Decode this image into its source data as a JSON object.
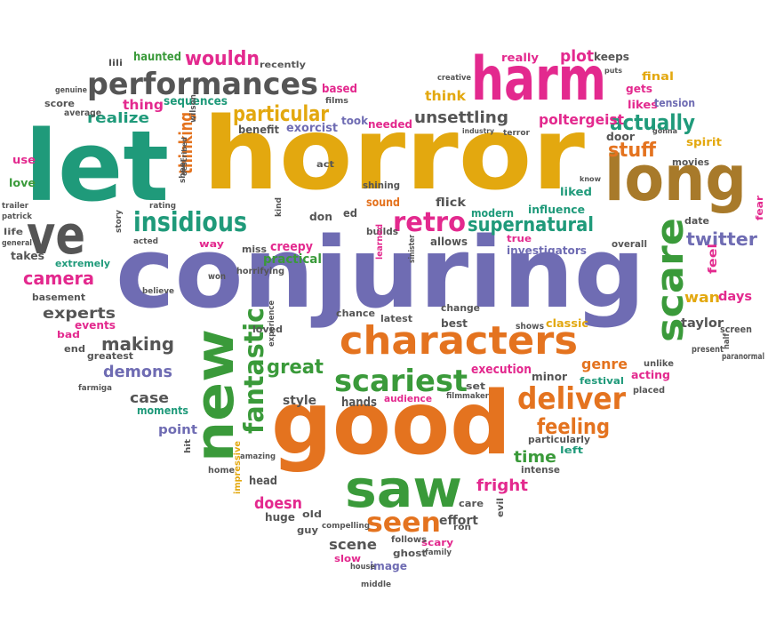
{
  "palette": {
    "green": "#3a9a3a",
    "purple": "#6f6cb3",
    "orange": "#e4731f",
    "teal": "#1f9a7a",
    "gold": "#e3a80f",
    "pink": "#e3298e",
    "gray": "#555555",
    "brown": "#a87a2a"
  },
  "words": [
    {
      "text": "horror",
      "color": "gold",
      "weight": 100
    },
    {
      "text": "conjuring",
      "color": "purple",
      "weight": 95
    },
    {
      "text": "good",
      "color": "orange",
      "weight": 80
    },
    {
      "text": "let",
      "color": "teal",
      "weight": 78
    },
    {
      "text": "long",
      "color": "brown",
      "weight": 62
    },
    {
      "text": "harm",
      "color": "pink",
      "weight": 58
    },
    {
      "text": "ve",
      "color": "gray",
      "weight": 55
    },
    {
      "text": "saw",
      "color": "green",
      "weight": 55
    },
    {
      "text": "new",
      "color": "green",
      "weight": 52
    },
    {
      "text": "characters",
      "color": "orange",
      "weight": 45
    },
    {
      "text": "scare",
      "color": "green",
      "weight": 40
    },
    {
      "text": "performances",
      "color": "gray",
      "weight": 36
    },
    {
      "text": "scariest",
      "color": "green",
      "weight": 34
    },
    {
      "text": "deliver",
      "color": "orange",
      "weight": 34
    },
    {
      "text": "seen",
      "color": "orange",
      "weight": 32
    },
    {
      "text": "insidious",
      "color": "teal",
      "weight": 30
    },
    {
      "text": "retro",
      "color": "pink",
      "weight": 30
    },
    {
      "text": "fantastic",
      "color": "green",
      "weight": 28
    },
    {
      "text": "particular",
      "color": "gold",
      "weight": 26
    },
    {
      "text": "actually",
      "color": "teal",
      "weight": 26
    },
    {
      "text": "feeling",
      "color": "orange",
      "weight": 24
    },
    {
      "text": "supernatural",
      "color": "teal",
      "weight": 24
    },
    {
      "text": "wouldn",
      "color": "pink",
      "weight": 22
    },
    {
      "text": "stuff",
      "color": "orange",
      "weight": 22
    },
    {
      "text": "great",
      "color": "green",
      "weight": 22
    },
    {
      "text": "twitter",
      "color": "purple",
      "weight": 20
    },
    {
      "text": "making",
      "color": "gray",
      "weight": 20
    },
    {
      "text": "camera",
      "color": "pink",
      "weight": 20
    },
    {
      "text": "thinking",
      "color": "orange",
      "weight": 20
    },
    {
      "text": "unsettling",
      "color": "gray",
      "weight": 18
    },
    {
      "text": "demons",
      "color": "purple",
      "weight": 18
    },
    {
      "text": "time",
      "color": "green",
      "weight": 18
    },
    {
      "text": "fright",
      "color": "pink",
      "weight": 18
    },
    {
      "text": "doesn",
      "color": "pink",
      "weight": 18
    },
    {
      "text": "plot",
      "color": "pink",
      "weight": 17
    },
    {
      "text": "experts",
      "color": "gray",
      "weight": 17
    },
    {
      "text": "realize",
      "color": "teal",
      "weight": 16
    },
    {
      "text": "poltergeist",
      "color": "pink",
      "weight": 16
    },
    {
      "text": "genre",
      "color": "orange",
      "weight": 16
    },
    {
      "text": "case",
      "color": "gray",
      "weight": 16
    },
    {
      "text": "scene",
      "color": "gray",
      "weight": 16
    },
    {
      "text": "wan",
      "color": "gold",
      "weight": 16
    },
    {
      "text": "think",
      "color": "gold",
      "weight": 15
    },
    {
      "text": "thing",
      "color": "pink",
      "weight": 15
    },
    {
      "text": "creepy",
      "color": "pink",
      "weight": 14
    },
    {
      "text": "days",
      "color": "pink",
      "weight": 14
    },
    {
      "text": "taylor",
      "color": "gray",
      "weight": 14
    },
    {
      "text": "effort",
      "color": "gray",
      "weight": 14
    },
    {
      "text": "practical",
      "color": "green",
      "weight": 14
    },
    {
      "text": "execution",
      "color": "pink",
      "weight": 14
    },
    {
      "text": "style",
      "color": "gray",
      "weight": 14
    },
    {
      "text": "hands",
      "color": "gray",
      "weight": 14
    },
    {
      "text": "point",
      "color": "purple",
      "weight": 14
    },
    {
      "text": "sound",
      "color": "orange",
      "weight": 13
    },
    {
      "text": "flick",
      "color": "gray",
      "weight": 13
    },
    {
      "text": "head",
      "color": "gray",
      "weight": 13
    },
    {
      "text": "sequences",
      "color": "teal",
      "weight": 13
    },
    {
      "text": "haunted",
      "color": "green",
      "weight": 13
    },
    {
      "text": "based",
      "color": "pink",
      "weight": 13
    },
    {
      "text": "exorcist",
      "color": "purple",
      "weight": 13
    },
    {
      "text": "benefit",
      "color": "gray",
      "weight": 12
    },
    {
      "text": "needed",
      "color": "pink",
      "weight": 12
    },
    {
      "text": "took",
      "color": "purple",
      "weight": 12
    },
    {
      "text": "liked",
      "color": "teal",
      "weight": 12
    },
    {
      "text": "final",
      "color": "gold",
      "weight": 12
    },
    {
      "text": "gets",
      "color": "pink",
      "weight": 12
    },
    {
      "text": "likes",
      "color": "pink",
      "weight": 12
    },
    {
      "text": "really",
      "color": "pink",
      "weight": 12
    },
    {
      "text": "keeps",
      "color": "gray",
      "weight": 12
    },
    {
      "text": "tension",
      "color": "purple",
      "weight": 12
    },
    {
      "text": "door",
      "color": "gray",
      "weight": 12
    },
    {
      "text": "spirit",
      "color": "gold",
      "weight": 12
    },
    {
      "text": "movies",
      "color": "gray",
      "weight": 11
    },
    {
      "text": "influence",
      "color": "teal",
      "weight": 12
    },
    {
      "text": "modern",
      "color": "teal",
      "weight": 12
    },
    {
      "text": "builds",
      "color": "gray",
      "weight": 11
    },
    {
      "text": "allows",
      "color": "gray",
      "weight": 12
    },
    {
      "text": "true",
      "color": "pink",
      "weight": 11
    },
    {
      "text": "investigators",
      "color": "purple",
      "weight": 12
    },
    {
      "text": "overall",
      "color": "gray",
      "weight": 11
    },
    {
      "text": "date",
      "color": "gray",
      "weight": 11
    },
    {
      "text": "feel",
      "color": "pink",
      "weight": 13
    },
    {
      "text": "screen",
      "color": "gray",
      "weight": 11
    },
    {
      "text": "classic",
      "color": "gold",
      "weight": 12
    },
    {
      "text": "minor",
      "color": "gray",
      "weight": 12
    },
    {
      "text": "festival",
      "color": "teal",
      "weight": 11
    },
    {
      "text": "acting",
      "color": "pink",
      "weight": 12
    },
    {
      "text": "unlike",
      "color": "gray",
      "weight": 10
    },
    {
      "text": "placed",
      "color": "gray",
      "weight": 10
    },
    {
      "text": "present",
      "color": "gray",
      "weight": 10
    },
    {
      "text": "paranormal",
      "color": "gray",
      "weight": 10
    },
    {
      "text": "half",
      "color": "gray",
      "weight": 9
    },
    {
      "text": "fear",
      "color": "pink",
      "weight": 11
    },
    {
      "text": "particularly",
      "color": "gray",
      "weight": 11
    },
    {
      "text": "left",
      "color": "teal",
      "weight": 11
    },
    {
      "text": "intense",
      "color": "gray",
      "weight": 11
    },
    {
      "text": "set",
      "color": "gray",
      "weight": 11
    },
    {
      "text": "audience",
      "color": "pink",
      "weight": 11
    },
    {
      "text": "filmmaker",
      "color": "gray",
      "weight": 9
    },
    {
      "text": "shows",
      "color": "gray",
      "weight": 10
    },
    {
      "text": "best",
      "color": "gray",
      "weight": 12
    },
    {
      "text": "change",
      "color": "gray",
      "weight": 11
    },
    {
      "text": "latest",
      "color": "gray",
      "weight": 11
    },
    {
      "text": "chance",
      "color": "gray",
      "weight": 11
    },
    {
      "text": "care",
      "color": "gray",
      "weight": 11
    },
    {
      "text": "evil",
      "color": "gray",
      "weight": 10
    },
    {
      "text": "ron",
      "color": "gray",
      "weight": 10
    },
    {
      "text": "scary",
      "color": "pink",
      "weight": 11
    },
    {
      "text": "ghost",
      "color": "gray",
      "weight": 11
    },
    {
      "text": "family",
      "color": "gray",
      "weight": 9
    },
    {
      "text": "follows",
      "color": "gray",
      "weight": 10
    },
    {
      "text": "image",
      "color": "purple",
      "weight": 12
    },
    {
      "text": "middle",
      "color": "gray",
      "weight": 9
    },
    {
      "text": "house",
      "color": "gray",
      "weight": 9
    },
    {
      "text": "slow",
      "color": "pink",
      "weight": 11
    },
    {
      "text": "compelling",
      "color": "gray",
      "weight": 9
    },
    {
      "text": "guy",
      "color": "gray",
      "weight": 11
    },
    {
      "text": "old",
      "color": "gray",
      "weight": 11
    },
    {
      "text": "huge",
      "color": "gray",
      "weight": 12
    },
    {
      "text": "amazing",
      "color": "gray",
      "weight": 9
    },
    {
      "text": "home",
      "color": "gray",
      "weight": 10
    },
    {
      "text": "impressive",
      "color": "gold",
      "weight": 10
    },
    {
      "text": "hit",
      "color": "gray",
      "weight": 9
    },
    {
      "text": "moments",
      "color": "teal",
      "weight": 12
    },
    {
      "text": "farmiga",
      "color": "gray",
      "weight": 9
    },
    {
      "text": "greatest",
      "color": "gray",
      "weight": 11
    },
    {
      "text": "end",
      "color": "gray",
      "weight": 11
    },
    {
      "text": "bad",
      "color": "pink",
      "weight": 11
    },
    {
      "text": "events",
      "color": "pink",
      "weight": 12
    },
    {
      "text": "basement",
      "color": "gray",
      "weight": 11
    },
    {
      "text": "extremely",
      "color": "teal",
      "weight": 11
    },
    {
      "text": "takes",
      "color": "gray",
      "weight": 12
    },
    {
      "text": "life",
      "color": "gray",
      "weight": 10
    },
    {
      "text": "general",
      "color": "gray",
      "weight": 9
    },
    {
      "text": "patrick",
      "color": "gray",
      "weight": 9
    },
    {
      "text": "trailer",
      "color": "gray",
      "weight": 9
    },
    {
      "text": "love",
      "color": "green",
      "weight": 12
    },
    {
      "text": "use",
      "color": "pink",
      "weight": 12
    },
    {
      "text": "score",
      "color": "gray",
      "weight": 11
    },
    {
      "text": "genuine",
      "color": "gray",
      "weight": 9
    },
    {
      "text": "average",
      "color": "gray",
      "weight": 10
    },
    {
      "text": "lili",
      "color": "gray",
      "weight": 10
    },
    {
      "text": "recently",
      "color": "gray",
      "weight": 10
    },
    {
      "text": "films",
      "color": "gray",
      "weight": 9
    },
    {
      "text": "wilson",
      "color": "gray",
      "weight": 9
    },
    {
      "text": "described",
      "color": "gray",
      "weight": 8
    },
    {
      "text": "sheer",
      "color": "gray",
      "weight": 9
    },
    {
      "text": "rating",
      "color": "gray",
      "weight": 9
    },
    {
      "text": "story",
      "color": "gray",
      "weight": 9
    },
    {
      "text": "acted",
      "color": "gray",
      "weight": 9
    },
    {
      "text": "believe",
      "color": "gray",
      "weight": 9
    },
    {
      "text": "won",
      "color": "gray",
      "weight": 10
    },
    {
      "text": "way",
      "color": "pink",
      "weight": 11
    },
    {
      "text": "miss",
      "color": "gray",
      "weight": 11
    },
    {
      "text": "kind",
      "color": "gray",
      "weight": 9
    },
    {
      "text": "horrifying",
      "color": "gray",
      "weight": 10
    },
    {
      "text": "act",
      "color": "gray",
      "weight": 10
    },
    {
      "text": "don",
      "color": "gray",
      "weight": 12
    },
    {
      "text": "ed",
      "color": "gray",
      "weight": 12
    },
    {
      "text": "learned",
      "color": "pink",
      "weight": 10
    },
    {
      "text": "sinister",
      "color": "gray",
      "weight": 9
    },
    {
      "text": "loved",
      "color": "gray",
      "weight": 11
    },
    {
      "text": "experience",
      "color": "gray",
      "weight": 9
    },
    {
      "text": "shining",
      "color": "gray",
      "weight": 11
    },
    {
      "text": "creative",
      "color": "gray",
      "weight": 9
    },
    {
      "text": "industry",
      "color": "gray",
      "weight": 8
    },
    {
      "text": "terror",
      "color": "gray",
      "weight": 9
    },
    {
      "text": "puts",
      "color": "gray",
      "weight": 8
    },
    {
      "text": "gonna",
      "color": "gray",
      "weight": 8
    },
    {
      "text": "know",
      "color": "gray",
      "weight": 8
    }
  ]
}
